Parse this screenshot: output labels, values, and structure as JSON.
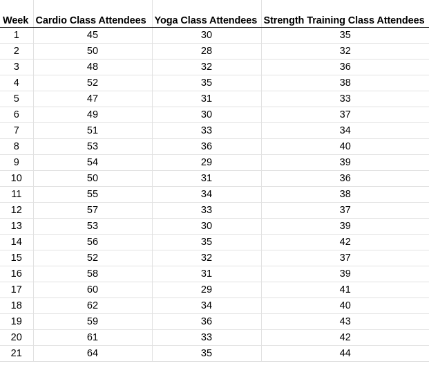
{
  "table": {
    "headers": {
      "week": "Week",
      "cardio": "Cardio Class Attendees",
      "yoga": "Yoga Class Attendees",
      "strength": "Strength Training Class Attendees"
    },
    "rows": [
      {
        "week": "1",
        "cardio": "45",
        "yoga": "30",
        "strength": "35"
      },
      {
        "week": "2",
        "cardio": "50",
        "yoga": "28",
        "strength": "32"
      },
      {
        "week": "3",
        "cardio": "48",
        "yoga": "32",
        "strength": "36"
      },
      {
        "week": "4",
        "cardio": "52",
        "yoga": "35",
        "strength": "38"
      },
      {
        "week": "5",
        "cardio": "47",
        "yoga": "31",
        "strength": "33"
      },
      {
        "week": "6",
        "cardio": "49",
        "yoga": "30",
        "strength": "37"
      },
      {
        "week": "7",
        "cardio": "51",
        "yoga": "33",
        "strength": "34"
      },
      {
        "week": "8",
        "cardio": "53",
        "yoga": "36",
        "strength": "40"
      },
      {
        "week": "9",
        "cardio": "54",
        "yoga": "29",
        "strength": "39"
      },
      {
        "week": "10",
        "cardio": "50",
        "yoga": "31",
        "strength": "36"
      },
      {
        "week": "11",
        "cardio": "55",
        "yoga": "34",
        "strength": "38"
      },
      {
        "week": "12",
        "cardio": "57",
        "yoga": "33",
        "strength": "37"
      },
      {
        "week": "13",
        "cardio": "53",
        "yoga": "30",
        "strength": "39"
      },
      {
        "week": "14",
        "cardio": "56",
        "yoga": "35",
        "strength": "42"
      },
      {
        "week": "15",
        "cardio": "52",
        "yoga": "32",
        "strength": "37"
      },
      {
        "week": "16",
        "cardio": "58",
        "yoga": "31",
        "strength": "39"
      },
      {
        "week": "17",
        "cardio": "60",
        "yoga": "29",
        "strength": "41"
      },
      {
        "week": "18",
        "cardio": "62",
        "yoga": "34",
        "strength": "40"
      },
      {
        "week": "19",
        "cardio": "59",
        "yoga": "36",
        "strength": "43"
      },
      {
        "week": "20",
        "cardio": "61",
        "yoga": "33",
        "strength": "42"
      },
      {
        "week": "21",
        "cardio": "64",
        "yoga": "35",
        "strength": "44"
      }
    ]
  }
}
